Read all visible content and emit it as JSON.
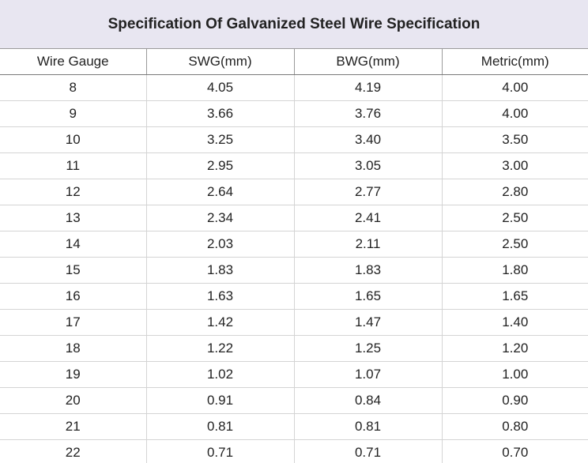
{
  "title": "Specification Of Galvanized Steel Wire Specification",
  "table": {
    "header": [
      "Wire Gauge",
      "SWG(mm)",
      "BWG(mm)",
      "Metric(mm)"
    ],
    "rows": [
      [
        "8",
        "4.05",
        "4.19",
        "4.00"
      ],
      [
        "9",
        "3.66",
        "3.76",
        "4.00"
      ],
      [
        "10",
        "3.25",
        "3.40",
        "3.50"
      ],
      [
        "11",
        "2.95",
        "3.05",
        "3.00"
      ],
      [
        "12",
        "2.64",
        "2.77",
        "2.80"
      ],
      [
        "13",
        "2.34",
        "2.41",
        "2.50"
      ],
      [
        "14",
        "2.03",
        "2.11",
        "2.50"
      ],
      [
        "15",
        "1.83",
        "1.83",
        "1.80"
      ],
      [
        "16",
        "1.63",
        "1.65",
        "1.65"
      ],
      [
        "17",
        "1.42",
        "1.47",
        "1.40"
      ],
      [
        "18",
        "1.22",
        "1.25",
        "1.20"
      ],
      [
        "19",
        "1.02",
        "1.07",
        "1.00"
      ],
      [
        "20",
        "0.91",
        "0.84",
        "0.90"
      ],
      [
        "21",
        "0.81",
        "0.81",
        "0.80"
      ],
      [
        "22",
        "0.71",
        "0.71",
        "0.70"
      ]
    ]
  }
}
